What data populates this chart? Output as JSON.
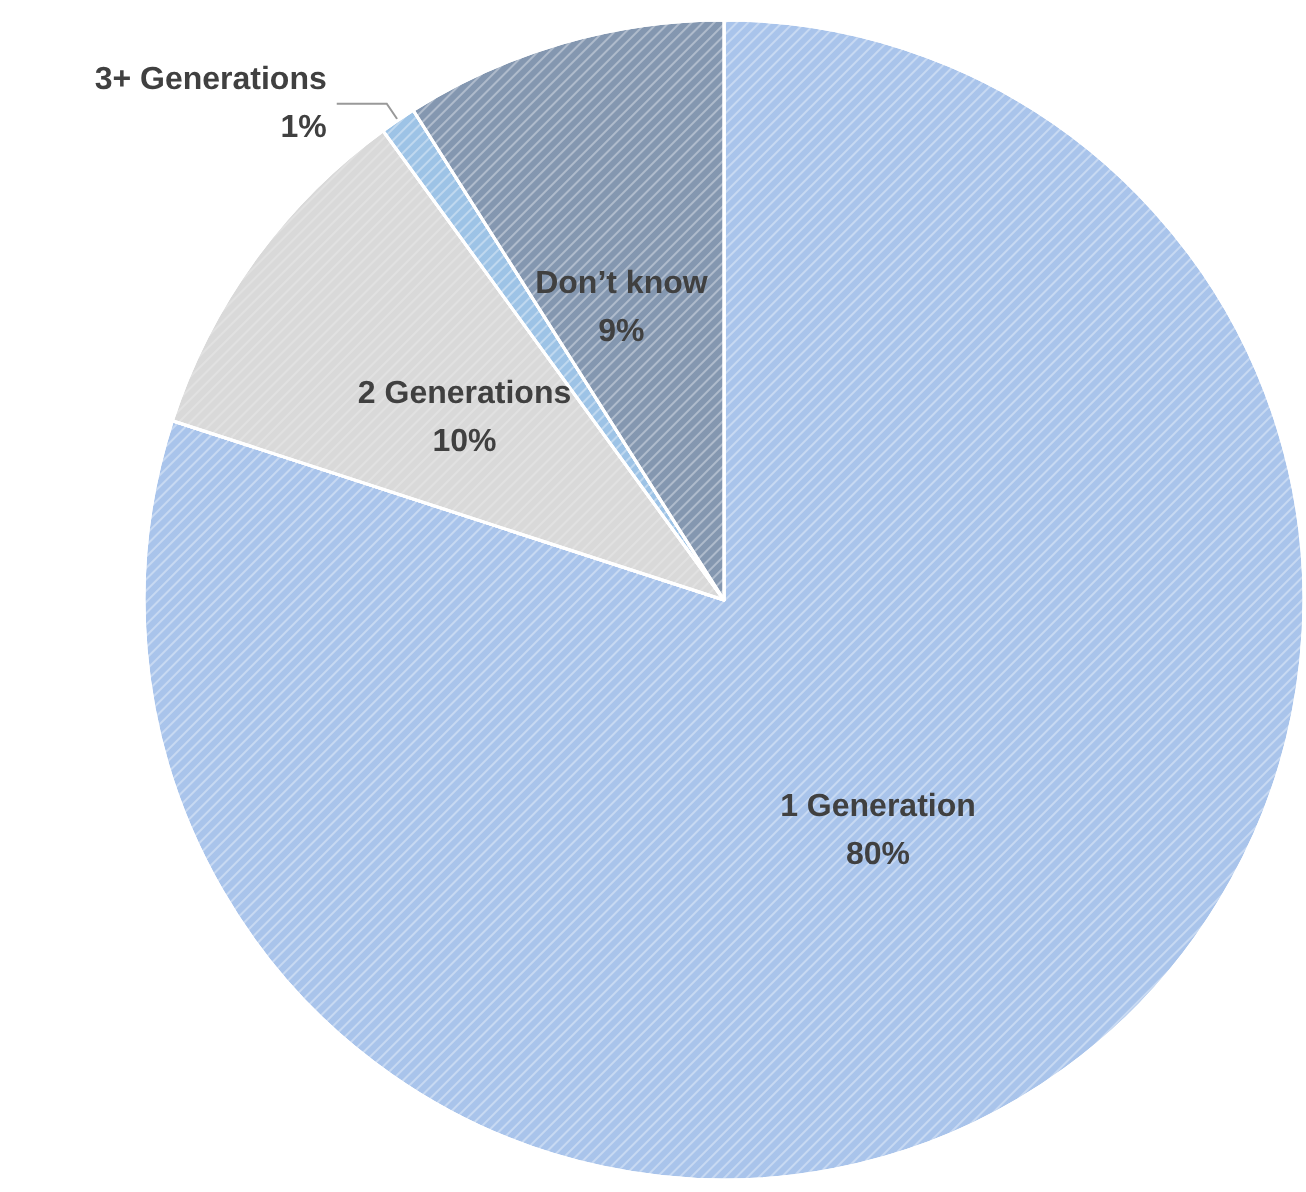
{
  "chart_data": {
    "type": "pie",
    "categories": [
      "1 Generation",
      "2 Generations",
      "3+ Generations",
      "Don’t know"
    ],
    "values": [
      80,
      10,
      1,
      9
    ],
    "value_labels": [
      "80%",
      "10%",
      "1%",
      "9%"
    ],
    "colors": [
      "#a9c4eb",
      "#d9d9d9",
      "#9dc3e6",
      "#8497b0"
    ],
    "legend": false
  }
}
